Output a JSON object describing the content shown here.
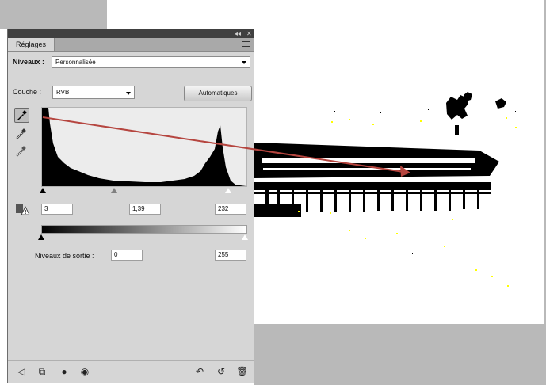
{
  "panel": {
    "tab_label": "Réglages",
    "preset_label": "Niveaux :",
    "preset_value": "Personnalisée",
    "channel_label": "Couche :",
    "channel_value": "RVB",
    "auto_button": "Automatiques",
    "input_levels": {
      "black": "3",
      "gamma": "1,39",
      "white": "232"
    },
    "output_label": "Niveaux de sortie :",
    "output_levels": {
      "black": "0",
      "white": "255"
    }
  },
  "icons": {
    "eyedroppers": [
      "eyedropper-black-icon",
      "eyedropper-gray-icon",
      "eyedropper-white-icon"
    ],
    "bottom": [
      "back-icon",
      "clip-layer-icon",
      "visibility-icon",
      "view-previous-icon",
      "reset-icon",
      "delete-icon"
    ]
  },
  "colors": {
    "panel_bg": "#d6d6d6",
    "titlebar": "#404040",
    "arrow": "#b5453f",
    "canvas_gray": "#b9b9b9"
  }
}
